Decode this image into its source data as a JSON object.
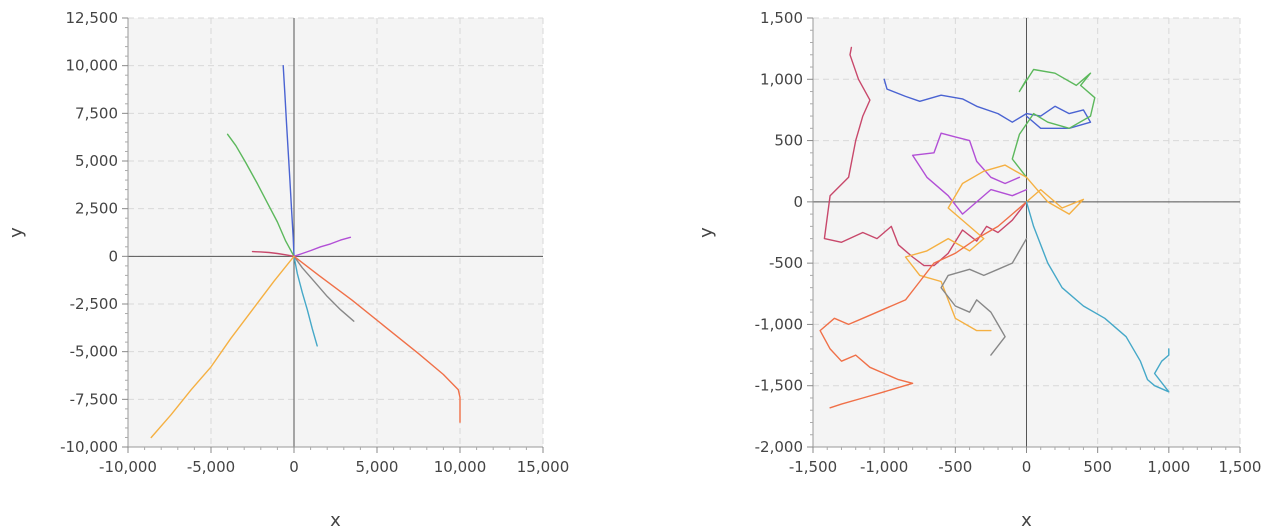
{
  "chart_data": [
    {
      "type": "line",
      "title": "",
      "xlabel": "x",
      "ylabel": "y",
      "xlim": [
        -10000,
        15000
      ],
      "ylim": [
        -10000,
        12500
      ],
      "xticks": [
        -10000,
        -5000,
        0,
        5000,
        10000,
        15000
      ],
      "yticks": [
        -10000,
        -7500,
        -5000,
        -2500,
        0,
        2500,
        5000,
        7500,
        10000,
        12500
      ],
      "xtick_labels": [
        "-10,000",
        "-5,000",
        "0",
        "5,000",
        "10,000",
        "15,000"
      ],
      "ytick_labels": [
        "-10,000",
        "-7,500",
        "-5,000",
        "-2,500",
        "0",
        "2,500",
        "5,000",
        "7,500",
        "10,000",
        "12,500"
      ],
      "grid": true,
      "legend": "none",
      "series": [
        {
          "color": "#4a63d2",
          "x": [
            0,
            -50,
            -150,
            -250,
            -350,
            -450,
            -550,
            -650
          ],
          "y": [
            0,
            1000,
            2500,
            4000,
            5500,
            7000,
            8500,
            10000
          ]
        },
        {
          "color": "#5cb85c",
          "x": [
            0,
            -500,
            -1000,
            -1600,
            -2200,
            -2900,
            -3500,
            -4000
          ],
          "y": [
            0,
            800,
            1800,
            2800,
            3800,
            4900,
            5800,
            6400
          ]
        },
        {
          "color": "#b24fd6",
          "x": [
            0,
            500,
            1000,
            1600,
            2200,
            2800,
            3400
          ],
          "y": [
            0,
            150,
            300,
            500,
            650,
            850,
            1000
          ]
        },
        {
          "color": "#c8486b",
          "x": [
            0,
            -500,
            -1000,
            -1500,
            -2000,
            -2500
          ],
          "y": [
            0,
            80,
            150,
            200,
            230,
            250
          ]
        },
        {
          "color": "#888888",
          "x": [
            0,
            500,
            1200,
            2000,
            2800,
            3600
          ],
          "y": [
            0,
            -600,
            -1300,
            -2100,
            -2800,
            -3400
          ]
        },
        {
          "color": "#45a8c8",
          "x": [
            0,
            200,
            500,
            800,
            1100,
            1400
          ],
          "y": [
            0,
            -900,
            -1900,
            -2800,
            -3800,
            -4700
          ]
        },
        {
          "color": "#f07048",
          "x": [
            0,
            1500,
            3500,
            5500,
            7500,
            9000,
            9900,
            10000,
            10000
          ],
          "y": [
            0,
            -1000,
            -2300,
            -3700,
            -5100,
            -6200,
            -7000,
            -7400,
            -8700
          ]
        },
        {
          "color": "#f5b042",
          "x": [
            0,
            -1200,
            -2500,
            -3800,
            -5000,
            -6200,
            -7400,
            -8600
          ],
          "y": [
            0,
            -1300,
            -2800,
            -4300,
            -5800,
            -7000,
            -8300,
            -9500
          ]
        }
      ]
    },
    {
      "type": "line",
      "title": "",
      "xlabel": "x",
      "ylabel": "y",
      "xlim": [
        -1500,
        1500
      ],
      "ylim": [
        -2000,
        1500
      ],
      "xticks": [
        -1500,
        -1000,
        -500,
        0,
        500,
        1000,
        1500
      ],
      "yticks": [
        -2000,
        -1500,
        -1000,
        -500,
        0,
        500,
        1000,
        1500
      ],
      "xtick_labels": [
        "-1,500",
        "-1,000",
        "-500",
        "0",
        "500",
        "1,000",
        "1,500"
      ],
      "ytick_labels": [
        "-2,000",
        "-1,500",
        "-1,000",
        "-500",
        "0",
        "500",
        "1,000",
        "1,500"
      ],
      "grid": true,
      "legend": "none",
      "series": [
        {
          "color": "#c8486b",
          "x": [
            0,
            -100,
            -200,
            -280,
            -350,
            -450,
            -550,
            -650,
            -720,
            -800,
            -900,
            -950,
            -1050,
            -1150,
            -1300,
            -1420,
            -1380,
            -1250,
            -1200,
            -1150,
            -1100,
            -1180,
            -1240,
            -1230
          ],
          "y": [
            0,
            -150,
            -250,
            -200,
            -320,
            -230,
            -420,
            -520,
            -520,
            -450,
            -350,
            -200,
            -300,
            -250,
            -330,
            -300,
            50,
            200,
            500,
            700,
            830,
            1000,
            1200,
            1260
          ]
        },
        {
          "color": "#4a63d2",
          "x": [
            0,
            100,
            300,
            450,
            400,
            300,
            200,
            100,
            0,
            -100,
            -200,
            -350,
            -450,
            -600,
            -750,
            -850,
            -980,
            -1000
          ],
          "y": [
            700,
            600,
            600,
            650,
            750,
            720,
            780,
            700,
            720,
            650,
            720,
            780,
            840,
            870,
            820,
            860,
            920,
            1000
          ]
        },
        {
          "color": "#5cb85c",
          "x": [
            0,
            -100,
            -50,
            50,
            150,
            300,
            450,
            480,
            380,
            450,
            400,
            350,
            200,
            50,
            -50,
            0
          ],
          "y": [
            200,
            350,
            550,
            720,
            650,
            600,
            700,
            850,
            950,
            1050,
            1000,
            950,
            1050,
            1080,
            900,
            1000
          ]
        },
        {
          "color": "#b24fd6",
          "x": [
            0,
            -100,
            -250,
            -350,
            -450,
            -550,
            -700,
            -800,
            -650,
            -600,
            -500,
            -400,
            -350,
            -250,
            -150,
            -50
          ],
          "y": [
            100,
            50,
            100,
            0,
            -100,
            50,
            200,
            380,
            400,
            560,
            530,
            500,
            330,
            200,
            150,
            200
          ]
        },
        {
          "color": "#f5b042",
          "x": [
            0,
            100,
            250,
            400,
            300,
            150,
            0,
            -150,
            -300,
            -450,
            -550,
            -400,
            -300,
            -400,
            -550,
            -700,
            -850,
            -750,
            -600,
            -500,
            -350,
            -250
          ],
          "y": [
            0,
            100,
            -50,
            20,
            -100,
            0,
            200,
            300,
            250,
            150,
            -50,
            -200,
            -300,
            -400,
            -300,
            -400,
            -450,
            -600,
            -650,
            -950,
            -1050,
            -1050
          ]
        },
        {
          "color": "#888888",
          "x": [
            0,
            -50,
            -100,
            -200,
            -300,
            -400,
            -550,
            -600,
            -500,
            -400,
            -350,
            -250,
            -200,
            -150,
            -250
          ],
          "y": [
            -300,
            -400,
            -500,
            -550,
            -600,
            -550,
            -600,
            -700,
            -850,
            -900,
            -800,
            -900,
            -1000,
            -1100,
            -1250
          ]
        },
        {
          "color": "#f07048",
          "x": [
            0,
            -100,
            -200,
            -350,
            -500,
            -650,
            -750,
            -850,
            -950,
            -1050,
            -1150,
            -1250,
            -1350,
            -1450,
            -1380,
            -1300,
            -1200,
            -1100,
            -1000,
            -900,
            -800,
            -1000,
            -1150,
            -1300,
            -1380
          ],
          "y": [
            0,
            -100,
            -200,
            -300,
            -420,
            -500,
            -650,
            -800,
            -850,
            -900,
            -950,
            -1000,
            -950,
            -1050,
            -1200,
            -1300,
            -1250,
            -1350,
            -1400,
            -1450,
            -1480,
            -1550,
            -1600,
            -1650,
            -1680
          ]
        },
        {
          "color": "#45a8c8",
          "x": [
            0,
            50,
            100,
            150,
            250,
            400,
            550,
            700,
            800,
            850,
            900,
            1000,
            900,
            950,
            1000,
            1000
          ],
          "y": [
            0,
            -200,
            -350,
            -500,
            -700,
            -850,
            -950,
            -1100,
            -1300,
            -1450,
            -1500,
            -1550,
            -1400,
            -1300,
            -1250,
            -1200
          ]
        }
      ]
    }
  ]
}
